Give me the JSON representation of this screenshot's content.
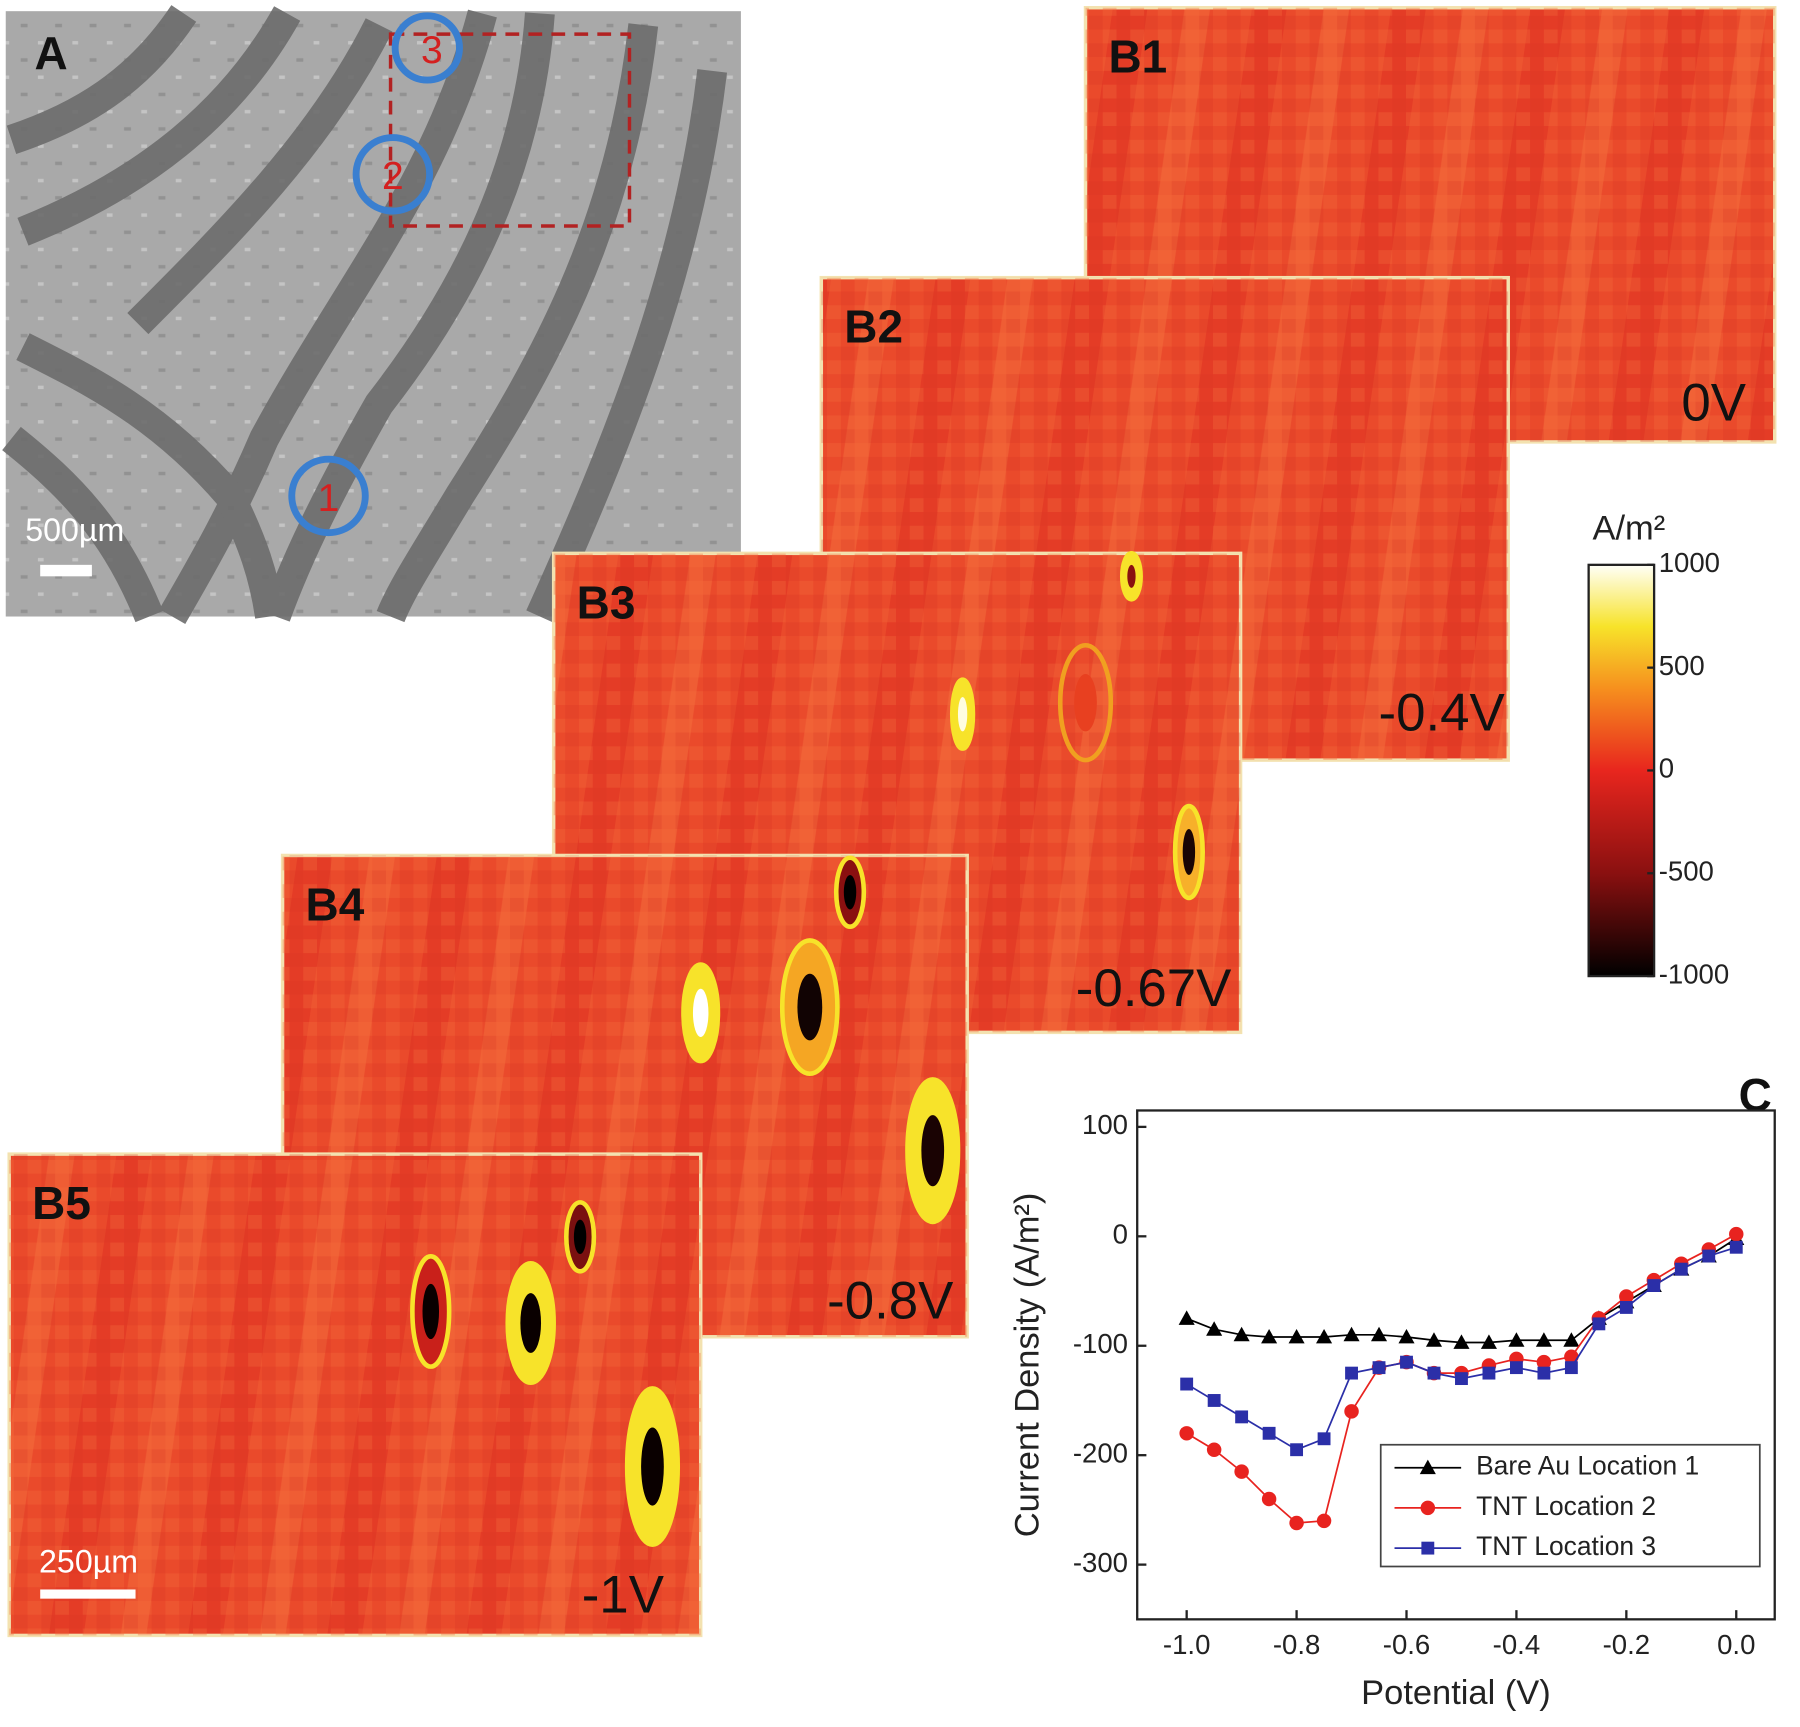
{
  "panel_a": {
    "label": "A",
    "scale_bar": "500µm",
    "locations": [
      "1",
      "2",
      "3"
    ]
  },
  "heatmaps": [
    {
      "label": "B1",
      "potential": "0V"
    },
    {
      "label": "B2",
      "potential": "-0.4V"
    },
    {
      "label": "B3",
      "potential": "-0.67V"
    },
    {
      "label": "B4",
      "potential": "-0.8V"
    },
    {
      "label": "B5",
      "potential": "-1V",
      "scale_bar": "250µm"
    }
  ],
  "colorbar": {
    "title": "A/m²",
    "lim": [
      -1000,
      1000
    ],
    "ticks": [
      1000,
      500,
      0,
      -500,
      -1000
    ]
  },
  "chart_data": {
    "type": "line",
    "panel_label": "C",
    "xlabel": "Potential (V)",
    "ylabel": "Current Density (A/m²)",
    "x": [
      -1.0,
      -0.95,
      -0.9,
      -0.85,
      -0.8,
      -0.75,
      -0.7,
      -0.65,
      -0.6,
      -0.55,
      -0.5,
      -0.45,
      -0.4,
      -0.35,
      -0.3,
      -0.25,
      -0.2,
      -0.15,
      -0.1,
      -0.05,
      0.0
    ],
    "xlim": [
      -1.09,
      0.07
    ],
    "ylim": [
      -350,
      115
    ],
    "xticks": [
      {
        "value": -1,
        "label": "-1.0"
      },
      -0.8,
      -0.6,
      -0.4,
      -0.2,
      {
        "value": 0,
        "label": "0.0"
      }
    ],
    "yticks": [
      100,
      0,
      -100,
      -200,
      -300
    ],
    "series": [
      {
        "name": "Bare Au Location 1",
        "color": "#000000",
        "marker": "triangle",
        "values": [
          -75,
          -85,
          -90,
          -92,
          -92,
          -92,
          -90,
          -90,
          -92,
          -95,
          -97,
          -97,
          -95,
          -95,
          -95,
          -75,
          -60,
          -45,
          -30,
          -18,
          -2
        ]
      },
      {
        "name": "TNT Location 2",
        "color": "#e8231f",
        "marker": "circle",
        "values": [
          -180,
          -195,
          -215,
          -240,
          -262,
          -260,
          -160,
          -120,
          -115,
          -125,
          -125,
          -118,
          -112,
          -115,
          -110,
          -75,
          -55,
          -40,
          -25,
          -12,
          2
        ]
      },
      {
        "name": "TNT Location 3",
        "color": "#2b2fa8",
        "marker": "square",
        "values": [
          -135,
          -150,
          -165,
          -180,
          -195,
          -185,
          -125,
          -120,
          -115,
          -125,
          -130,
          -125,
          -120,
          -125,
          -120,
          -80,
          -65,
          -45,
          -30,
          -18,
          -10
        ]
      }
    ]
  }
}
